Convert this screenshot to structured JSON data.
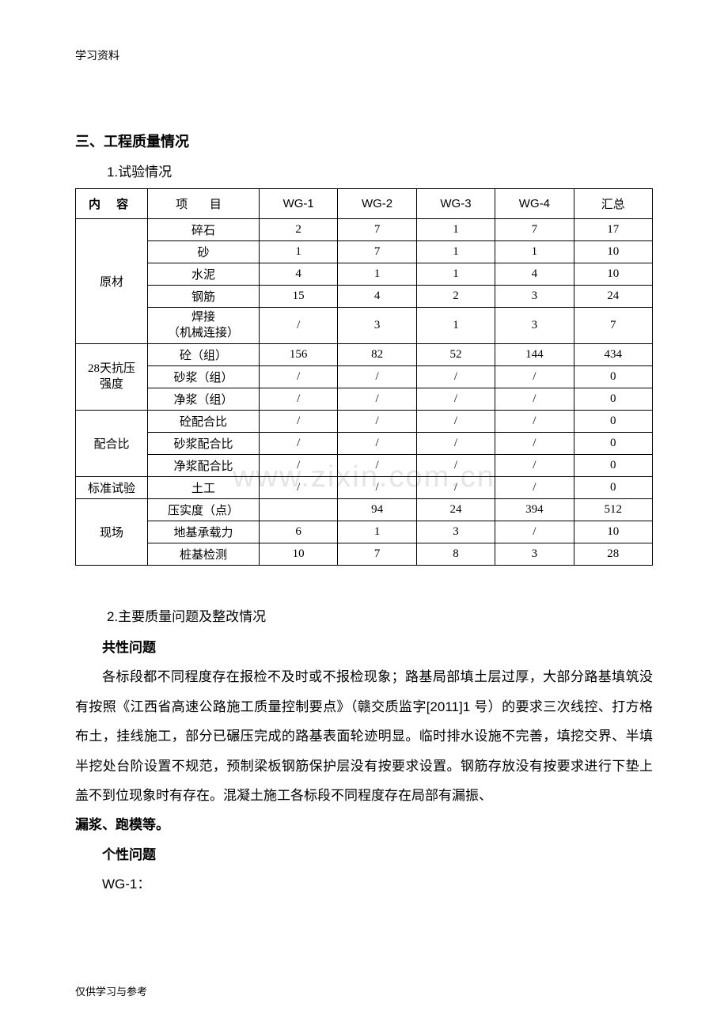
{
  "header_label": "学习资料",
  "footer_label": "仅供学习与参考",
  "watermark_text": "www.zixin.com.cn",
  "section_title": "三、工程质量情况",
  "subsection1_title": "1.试验情况",
  "subsection2_title": "2.主要质量问题及整改情况",
  "common_issue_title": "共性问题",
  "individual_issue_title": "个性问题",
  "wg1_label": "WG-1：",
  "body_paragraph_part1": "各标段都不同程度存在报检不及时或不报检现象；路基局部填土层过厚，大部分路基填筑没有按照《江西省高速公路施工质量控制要点》（赣交质监字[2011]1 号）的要求三次线控、打方格布土，挂线施工，部分已碾压完成的路基表面轮迹明显。临时排水设施不完善，填挖交界、半填半挖处台阶设置不规范，预制梁板钢筋保护层没有按要求设置。钢筋存放没有按要求进行下垫上盖不到位现象时有存在。混凝土施工各标段不同程度存在局部有漏振、",
  "body_paragraph_part2": "漏浆、跑模等。",
  "table": {
    "header": {
      "content": "内 容",
      "item": "项   目",
      "wg1": "WG-1",
      "wg2": "WG-2",
      "wg3": "WG-3",
      "wg4": "WG-4",
      "total": "汇总"
    },
    "categories": [
      {
        "name": "原材",
        "rowspan": 5,
        "rows": [
          {
            "item": "碎石",
            "wg1": "2",
            "wg2": "7",
            "wg3": "1",
            "wg4": "7",
            "total": "17"
          },
          {
            "item": "砂",
            "wg1": "1",
            "wg2": "7",
            "wg3": "1",
            "wg4": "1",
            "total": "10"
          },
          {
            "item": "水泥",
            "wg1": "4",
            "wg2": "1",
            "wg3": "1",
            "wg4": "4",
            "total": "10"
          },
          {
            "item": "钢筋",
            "wg1": "15",
            "wg2": "4",
            "wg3": "2",
            "wg4": "3",
            "total": "24"
          },
          {
            "item": "焊接\n（机械连接）",
            "wg1": "/",
            "wg2": "3",
            "wg3": "1",
            "wg4": "3",
            "total": "7",
            "twoline": true
          }
        ]
      },
      {
        "name": "28天抗压\n强度",
        "rowspan": 3,
        "twoline": true,
        "rows": [
          {
            "item": "砼（组）",
            "wg1": "156",
            "wg2": "82",
            "wg3": "52",
            "wg4": "144",
            "total": "434"
          },
          {
            "item": "砂浆（组）",
            "wg1": "/",
            "wg2": "/",
            "wg3": "/",
            "wg4": "/",
            "total": "0"
          },
          {
            "item": "净浆（组）",
            "wg1": "/",
            "wg2": "/",
            "wg3": "/",
            "wg4": "/",
            "total": "0"
          }
        ]
      },
      {
        "name": "配合比",
        "rowspan": 3,
        "rows": [
          {
            "item": "砼配合比",
            "wg1": "/",
            "wg2": "/",
            "wg3": "/",
            "wg4": "/",
            "total": "0"
          },
          {
            "item": "砂浆配合比",
            "wg1": "/",
            "wg2": "/",
            "wg3": "/",
            "wg4": "/",
            "total": "0"
          },
          {
            "item": "净浆配合比",
            "wg1": "/",
            "wg2": "/",
            "wg3": "/",
            "wg4": "/",
            "total": "0"
          }
        ]
      },
      {
        "name": "标准试验",
        "rowspan": 1,
        "rows": [
          {
            "item": "土工",
            "wg1": "/",
            "wg2": "/",
            "wg3": "/",
            "wg4": "/",
            "total": "0"
          }
        ]
      },
      {
        "name": "现场",
        "rowspan": 3,
        "rows": [
          {
            "item": "压实度（点）",
            "wg1": "",
            "wg2": "94",
            "wg3": "24",
            "wg4": "394",
            "total": "512"
          },
          {
            "item": "地基承载力",
            "wg1": "6",
            "wg2": "1",
            "wg3": "3",
            "wg4": "/",
            "total": "10"
          },
          {
            "item": "桩基检测",
            "wg1": "10",
            "wg2": "7",
            "wg3": "8",
            "wg4": "3",
            "total": "28"
          }
        ]
      }
    ],
    "border_color": "#000000",
    "cell_fontsize": 15
  }
}
